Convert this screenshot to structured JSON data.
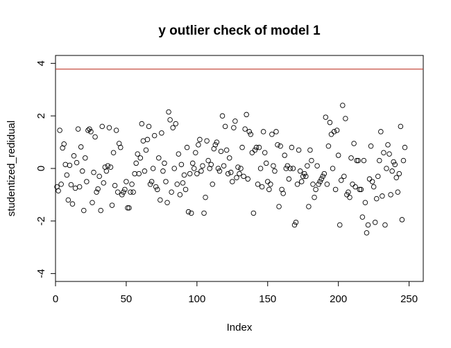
{
  "chart_data": {
    "type": "scatter",
    "title": "y outlier check of model 1",
    "xlabel": "Index",
    "ylabel": "studentized_redidual",
    "xlim": [
      0,
      260
    ],
    "ylim": [
      -4.3,
      4.3
    ],
    "x_ticks": [
      0,
      50,
      100,
      150,
      200,
      250
    ],
    "y_ticks": [
      -4,
      -2,
      0,
      2,
      4
    ],
    "reference_line": {
      "y": 3.78,
      "color": "#c0392b"
    },
    "grid": false,
    "marker": "open-circle",
    "series": [
      {
        "values": [
          -0.7,
          -0.85,
          1.45,
          -0.6,
          0.78,
          0.93,
          0.15,
          -0.25,
          -1.2,
          0.12,
          -0.62,
          -1.35,
          0.48,
          -0.75,
          0.22,
          1.5,
          -0.7,
          0.82,
          -0.1,
          -1.6,
          0.4,
          -0.5,
          1.45,
          1.5,
          1.4,
          -1.3,
          -0.15,
          1.2,
          -0.9,
          -0.78,
          -0.3,
          -1.6,
          1.6,
          -0.55,
          0.05,
          -0.1,
          0.1,
          1.55,
          0.05,
          -1.4,
          0.6,
          -0.65,
          1.45,
          -0.9,
          0.95,
          0.8,
          -1.0,
          -0.9,
          -0.8,
          -0.5,
          -1.5,
          -1.5,
          -0.9,
          -0.6,
          -0.9,
          -0.2,
          0.2,
          0.55,
          -0.2,
          0.4,
          1.7,
          1.05,
          -0.1,
          0.7,
          1.1,
          1.6,
          -0.6,
          -0.5,
          0.0,
          1.25,
          -0.7,
          -0.8,
          0.4,
          -1.2,
          1.35,
          -0.1,
          0.2,
          -0.5,
          -1.3,
          2.15,
          1.85,
          -0.9,
          1.55,
          0.0,
          1.7,
          -0.6,
          0.55,
          -1.0,
          0.15,
          -0.55,
          -0.25,
          -0.8,
          0.8,
          -1.65,
          -0.2,
          -1.7,
          0.2,
          0.0,
          0.6,
          -0.2,
          0.9,
          1.1,
          -0.1,
          0.1,
          -1.7,
          -1.1,
          1.05,
          0.3,
          0.0,
          0.15,
          -0.6,
          0.75,
          0.9,
          1.0,
          0.0,
          -0.1,
          0.65,
          2.0,
          0.1,
          1.6,
          0.7,
          -0.2,
          0.4,
          -0.15,
          -0.5,
          1.55,
          1.8,
          -0.35,
          0.05,
          -0.2,
          0.0,
          0.8,
          -0.3,
          1.5,
          2.05,
          -0.4,
          1.4,
          1.3,
          0.6,
          -1.7,
          0.7,
          0.8,
          -0.6,
          0.8,
          0.0,
          -0.7,
          1.4,
          0.6,
          0.2,
          -0.5,
          -0.8,
          -0.6,
          1.3,
          0.1,
          -0.1,
          1.4,
          0.9,
          -1.45,
          0.85,
          -0.8,
          -0.95,
          0.5,
          0.0,
          0.1,
          -0.4,
          0.0,
          0.8,
          0.0,
          -2.15,
          -2.05,
          -0.6,
          0.7,
          -0.1,
          -0.5,
          -0.3,
          -0.2,
          -0.3,
          0.1,
          -1.45,
          0.7,
          0.3,
          -0.6,
          -1.1,
          -0.8,
          0.1,
          -0.6,
          -0.5,
          -0.4,
          -0.3,
          -0.2,
          1.95,
          -0.6,
          0.85,
          1.75,
          1.3,
          0.0,
          1.4,
          -0.8,
          1.45,
          0.5,
          -2.15,
          -0.45,
          2.4,
          -0.3,
          1.9,
          -1.0,
          -0.9,
          -1.1,
          0.4,
          -0.6,
          0.95,
          -0.7,
          0.3,
          0.3,
          -0.8,
          -0.8,
          -1.85,
          0.3,
          -1.3,
          -2.45,
          -2.15,
          -0.4,
          0.85,
          -0.5,
          -0.7,
          -2.05,
          -1.15,
          -0.3,
          0.3,
          1.4,
          -1.05,
          0.6,
          -2.15,
          0.0,
          0.9,
          0.55,
          -1.0,
          -0.1,
          0.25,
          0.15,
          -0.35,
          -0.9,
          -0.2,
          1.6,
          -1.95,
          0.3,
          0.8
        ]
      }
    ]
  }
}
